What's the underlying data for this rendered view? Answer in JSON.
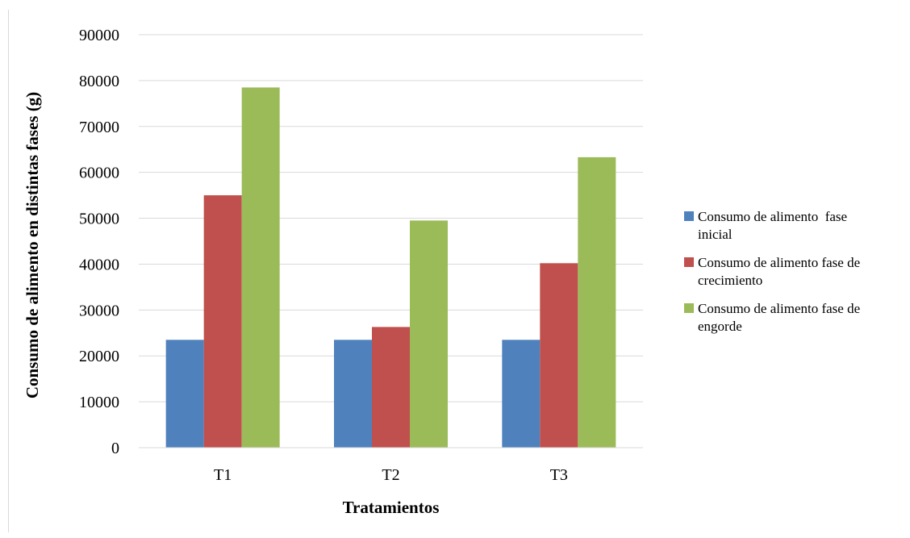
{
  "chart_data": {
    "type": "bar",
    "title": "",
    "xlabel": "Tratamientos",
    "ylabel": "Consumo de alimento en distintas fases (g)",
    "categories": [
      "T1",
      "T2",
      "T3"
    ],
    "ylim": [
      0,
      90000
    ],
    "yticks": [
      0,
      10000,
      20000,
      30000,
      40000,
      50000,
      60000,
      70000,
      80000,
      90000
    ],
    "grid": true,
    "legend_position": "right",
    "series": [
      {
        "name": "Consumo de alimento  fase inicial",
        "legend_lines": [
          "Consumo de alimento  fase",
          "inicial"
        ],
        "color": "#4F81BD",
        "values": [
          23500,
          23500,
          23500
        ]
      },
      {
        "name": "Consumo de alimento fase de crecimiento",
        "legend_lines": [
          "Consumo de alimento fase de",
          "crecimiento"
        ],
        "color": "#C0504D",
        "values": [
          55000,
          26300,
          40200
        ]
      },
      {
        "name": "Consumo de alimento fase de engorde",
        "legend_lines": [
          "Consumo de alimento fase de",
          "engorde"
        ],
        "color": "#9BBB59",
        "values": [
          78500,
          49500,
          63300
        ]
      }
    ]
  }
}
